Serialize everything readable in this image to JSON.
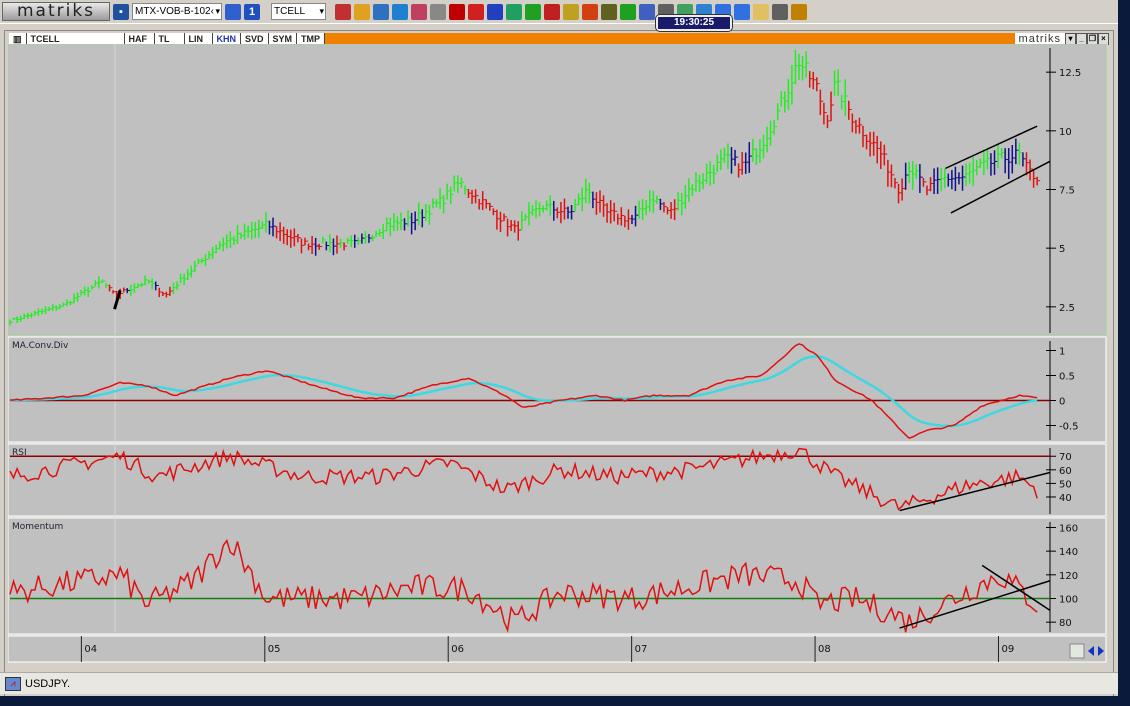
{
  "toolbar": {
    "logo": "matriks",
    "layout_combo": "MTX-VOB-B-102‹",
    "symbol_combo": "TCELL",
    "clock": "19:30:25",
    "icons": [
      "save-icon",
      "page-icon",
      "info-icon",
      "chart-icon",
      "pie-icon",
      "glasses-icon",
      "clock-icon",
      "books-icon",
      "tools-icon",
      "bold-b-icon",
      "a-icon",
      "u-icon",
      "network-icon",
      "grid-icon",
      "eye-icon",
      "moneybag-icon",
      "refresh-icon",
      "traffic-light-icon",
      "table-icon",
      "filter-icon",
      "windows-icon",
      "money-icon",
      "globe-icon",
      "window-icon",
      "window2-icon",
      "mail-icon",
      "printer-icon",
      "alarm-icon"
    ]
  },
  "window": {
    "tabs": [
      "TCELL",
      "HAF",
      "TL",
      "LIN",
      "KHN",
      "SVD",
      "SYM",
      "TMP"
    ],
    "selected_tab": "KHN",
    "brand": "matriks"
  },
  "colors": {
    "up": "#22ee22",
    "down": "#e01010",
    "neutral": "#10108a",
    "bg": "#c0c0c0",
    "macd": "#e01010",
    "signal": "#40d8e0",
    "rsi": "#e01010",
    "level": "#8a0000",
    "momentum": "#e01010",
    "mom_level": "#108010"
  },
  "chart_data": {
    "type": "line",
    "xlabels": [
      "04",
      "05",
      "06",
      "07",
      "08",
      "09"
    ],
    "xlabel_years": [
      2004,
      2005,
      2006,
      2007,
      2008,
      2009
    ],
    "xrange": [
      2003.6,
      2009.27
    ],
    "panels": [
      {
        "name": "price",
        "title": "",
        "type": "bar",
        "yticks": [
          "12.5",
          "10",
          "7.5",
          "5",
          "2.5"
        ],
        "ytick_values": [
          12.5,
          10,
          7.5,
          5,
          2.5
        ],
        "ylim": [
          1.3,
          13.7
        ],
        "series": [
          [
            2003.6,
            1.9
          ],
          [
            2003.9,
            2.6
          ],
          [
            2004.1,
            3.6
          ],
          [
            2004.17,
            3.0
          ],
          [
            2004.35,
            3.6
          ],
          [
            2004.45,
            3.0
          ],
          [
            2004.55,
            3.8
          ],
          [
            2004.75,
            5.2
          ],
          [
            2005.0,
            6.0
          ],
          [
            2005.1,
            5.6
          ],
          [
            2005.2,
            5.2
          ],
          [
            2005.5,
            5.2
          ],
          [
            2005.65,
            6.0
          ],
          [
            2005.8,
            6.2
          ],
          [
            2005.95,
            7.0
          ],
          [
            2006.05,
            7.8
          ],
          [
            2006.2,
            6.8
          ],
          [
            2006.35,
            5.8
          ],
          [
            2006.5,
            6.8
          ],
          [
            2006.65,
            6.5
          ],
          [
            2006.75,
            7.5
          ],
          [
            2006.85,
            6.5
          ],
          [
            2007.0,
            6.2
          ],
          [
            2007.1,
            7.2
          ],
          [
            2007.2,
            6.5
          ],
          [
            2007.3,
            7.5
          ],
          [
            2007.5,
            8.8
          ],
          [
            2007.6,
            8.5
          ],
          [
            2007.7,
            9.5
          ],
          [
            2007.8,
            11
          ],
          [
            2007.9,
            13.0
          ],
          [
            2008.0,
            11.8
          ],
          [
            2008.05,
            10.5
          ],
          [
            2008.1,
            12.0
          ],
          [
            2008.2,
            10.5
          ],
          [
            2008.35,
            9.0
          ],
          [
            2008.45,
            7.5
          ],
          [
            2008.5,
            8.5
          ],
          [
            2008.6,
            7.5
          ],
          [
            2008.7,
            8.0
          ],
          [
            2008.8,
            8.0
          ],
          [
            2008.9,
            8.5
          ],
          [
            2009.0,
            8.8
          ],
          [
            2009.1,
            9.0
          ],
          [
            2009.15,
            8.3
          ],
          [
            2009.2,
            8.0
          ]
        ],
        "trendlines": [
          [
            [
              2008.7,
              8.4
            ],
            [
              2009.2,
              10.2
            ]
          ],
          [
            [
              2008.73,
              6.5
            ],
            [
              2009.27,
              8.7
            ]
          ],
          [
            [
              2004.17,
              2.4
            ],
            [
              2004.2,
              3.2
            ]
          ]
        ]
      },
      {
        "name": "macd",
        "title": "MA.Conv.Div",
        "yticks": [
          "1",
          "0.5",
          "0",
          "-0.5"
        ],
        "ytick_values": [
          1,
          0.5,
          0,
          -0.5
        ],
        "ylim": [
          -0.83,
          1.27
        ],
        "level": 0,
        "series": [
          [
            2003.6,
            0
          ],
          [
            2004.0,
            0.1
          ],
          [
            2004.2,
            0.35
          ],
          [
            2004.35,
            0.3
          ],
          [
            2004.5,
            0.1
          ],
          [
            2004.8,
            0.45
          ],
          [
            2005.0,
            0.6
          ],
          [
            2005.3,
            0.25
          ],
          [
            2005.5,
            0.05
          ],
          [
            2005.7,
            0.05
          ],
          [
            2005.9,
            0.3
          ],
          [
            2006.1,
            0.45
          ],
          [
            2006.3,
            0.1
          ],
          [
            2006.4,
            -0.15
          ],
          [
            2006.6,
            0.0
          ],
          [
            2006.8,
            0.1
          ],
          [
            2006.95,
            0.0
          ],
          [
            2007.1,
            0.1
          ],
          [
            2007.3,
            0.1
          ],
          [
            2007.5,
            0.4
          ],
          [
            2007.7,
            0.5
          ],
          [
            2007.9,
            1.15
          ],
          [
            2008.0,
            0.9
          ],
          [
            2008.1,
            0.4
          ],
          [
            2008.3,
            0.0
          ],
          [
            2008.5,
            -0.75
          ],
          [
            2008.6,
            -0.6
          ],
          [
            2008.75,
            -0.5
          ],
          [
            2008.9,
            -0.1
          ],
          [
            2009.1,
            0.1
          ],
          [
            2009.2,
            0.05
          ]
        ]
      },
      {
        "name": "rsi",
        "title": "RSI",
        "yticks": [
          "70",
          "60",
          "50",
          "40"
        ],
        "ytick_values": [
          70,
          60,
          50,
          40
        ],
        "ylim": [
          26,
          79
        ],
        "level": 70,
        "series": [
          [
            2003.6,
            55
          ],
          [
            2004.2,
            70
          ],
          [
            2004.4,
            55
          ],
          [
            2004.8,
            70
          ],
          [
            2005.2,
            55
          ],
          [
            2005.6,
            55
          ],
          [
            2006.0,
            65
          ],
          [
            2006.3,
            45
          ],
          [
            2006.6,
            60
          ],
          [
            2006.9,
            55
          ],
          [
            2007.3,
            60
          ],
          [
            2007.9,
            75
          ],
          [
            2008.1,
            55
          ],
          [
            2008.45,
            32
          ],
          [
            2008.8,
            48
          ],
          [
            2009.1,
            55
          ],
          [
            2009.2,
            45
          ]
        ],
        "trendlines": [
          [
            [
              2008.45,
              30
            ],
            [
              2009.27,
              58
            ]
          ]
        ]
      },
      {
        "name": "momentum",
        "title": "Momentum",
        "yticks": [
          "160",
          "140",
          "120",
          "100",
          "80"
        ],
        "ytick_values": [
          160,
          140,
          120,
          100,
          80
        ],
        "ylim": [
          70,
          168
        ],
        "level": 100,
        "series": [
          [
            2003.6,
            105
          ],
          [
            2004.2,
            120
          ],
          [
            2004.35,
            95
          ],
          [
            2004.6,
            115
          ],
          [
            2004.8,
            150
          ],
          [
            2005.0,
            100
          ],
          [
            2005.5,
            100
          ],
          [
            2005.8,
            110
          ],
          [
            2006.1,
            108
          ],
          [
            2006.35,
            80
          ],
          [
            2006.6,
            105
          ],
          [
            2007.0,
            100
          ],
          [
            2007.3,
            110
          ],
          [
            2007.6,
            120
          ],
          [
            2007.9,
            115
          ],
          [
            2008.0,
            95
          ],
          [
            2008.2,
            100
          ],
          [
            2008.4,
            88
          ],
          [
            2008.5,
            80
          ],
          [
            2008.8,
            105
          ],
          [
            2009.0,
            120
          ],
          [
            2009.2,
            95
          ]
        ],
        "trendlines": [
          [
            [
              2008.45,
              75
            ],
            [
              2009.27,
              115
            ]
          ],
          [
            [
              2008.9,
              128
            ],
            [
              2009.27,
              90
            ]
          ]
        ]
      }
    ]
  },
  "bottom": {
    "symbol": "USDJPY."
  }
}
